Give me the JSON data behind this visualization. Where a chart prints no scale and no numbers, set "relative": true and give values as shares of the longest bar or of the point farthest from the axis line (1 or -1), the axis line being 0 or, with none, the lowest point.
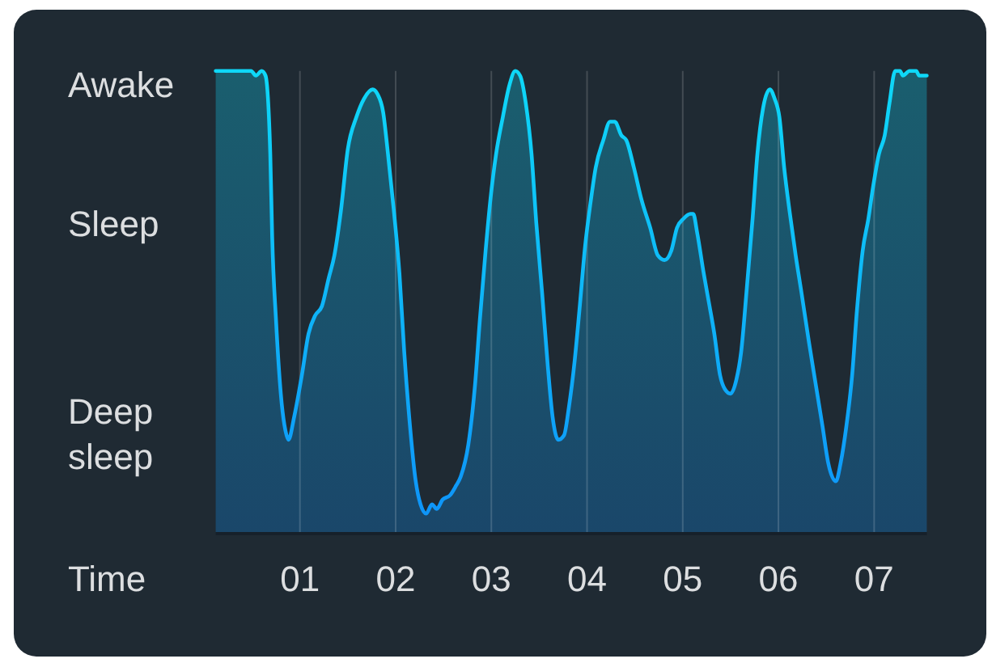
{
  "chart_data": {
    "type": "area",
    "relative": true,
    "xlabel": "Time",
    "annotations": [
      "Awake",
      "Sleep",
      "Deep sleep"
    ],
    "x": [
      0.12,
      0.21,
      0.29,
      0.4,
      0.49,
      0.54,
      0.6,
      0.64,
      0.69,
      0.71,
      0.75,
      0.8,
      0.86,
      0.88,
      0.94,
      1.02,
      1.09,
      1.16,
      1.23,
      1.3,
      1.36,
      1.43,
      1.5,
      1.59,
      1.67,
      1.76,
      1.81,
      1.87,
      1.92,
      1.98,
      2.04,
      2.09,
      2.15,
      2.21,
      2.26,
      2.32,
      2.38,
      2.43,
      2.49,
      2.57,
      2.63,
      2.68,
      2.76,
      2.83,
      2.88,
      2.94,
      2.99,
      3.05,
      3.12,
      3.19,
      3.25,
      3.3,
      3.36,
      3.42,
      3.47,
      3.53,
      3.59,
      3.64,
      3.7,
      3.76,
      3.81,
      3.87,
      3.92,
      3.98,
      4.04,
      4.09,
      4.17,
      4.24,
      4.29,
      4.36,
      4.41,
      4.49,
      4.57,
      4.66,
      4.74,
      4.81,
      4.88,
      4.94,
      5.01,
      5.08,
      5.11,
      5.15,
      5.22,
      5.28,
      5.33,
      5.39,
      5.44,
      5.5,
      5.56,
      5.61,
      5.67,
      5.73,
      5.78,
      5.84,
      5.91,
      5.96,
      6.01,
      6.06,
      6.12,
      6.18,
      6.24,
      6.32,
      6.39,
      6.46,
      6.52,
      6.6,
      6.65,
      6.71,
      6.77,
      6.82,
      6.88,
      6.94,
      6.99,
      7.05,
      7.11,
      7.16,
      7.22,
      7.27,
      7.3,
      7.37,
      7.44,
      7.47,
      7.55
    ],
    "series": [
      {
        "color": "#0ed8f8",
        "values": [
          1,
          1,
          1,
          1,
          1,
          0.99,
          1,
          0.99,
          0.82,
          0.64,
          0.46,
          0.3,
          0.21,
          0.2,
          0.25,
          0.34,
          0.43,
          0.47,
          0.49,
          0.55,
          0.6,
          0.7,
          0.83,
          0.9,
          0.94,
          0.96,
          0.95,
          0.91,
          0.82,
          0.7,
          0.56,
          0.39,
          0.23,
          0.11,
          0.06,
          0.04,
          0.06,
          0.05,
          0.07,
          0.08,
          0.1,
          0.12,
          0.19,
          0.32,
          0.46,
          0.61,
          0.72,
          0.82,
          0.9,
          0.97,
          1,
          0.99,
          0.93,
          0.82,
          0.67,
          0.52,
          0.36,
          0.25,
          0.2,
          0.21,
          0.27,
          0.37,
          0.48,
          0.62,
          0.72,
          0.79,
          0.85,
          0.89,
          0.89,
          0.86,
          0.85,
          0.79,
          0.72,
          0.66,
          0.6,
          0.59,
          0.61,
          0.66,
          0.68,
          0.69,
          0.69,
          0.65,
          0.56,
          0.49,
          0.43,
          0.34,
          0.31,
          0.3,
          0.33,
          0.39,
          0.53,
          0.68,
          0.82,
          0.92,
          0.96,
          0.94,
          0.9,
          0.79,
          0.69,
          0.6,
          0.52,
          0.41,
          0.32,
          0.23,
          0.15,
          0.11,
          0.15,
          0.23,
          0.34,
          0.48,
          0.61,
          0.68,
          0.75,
          0.82,
          0.86,
          0.93,
          1,
          1,
          0.99,
          1,
          1,
          0.99,
          0.99
        ]
      }
    ],
    "xlim": [
      0.12,
      7.55
    ],
    "xticks": [
      {
        "value": 1,
        "label": "01"
      },
      {
        "value": 2,
        "label": "02"
      },
      {
        "value": 3,
        "label": "03"
      },
      {
        "value": 4,
        "label": "04"
      },
      {
        "value": 5,
        "label": "05"
      },
      {
        "value": 6,
        "label": "06"
      },
      {
        "value": 7,
        "label": "07"
      }
    ],
    "grid": "x"
  }
}
